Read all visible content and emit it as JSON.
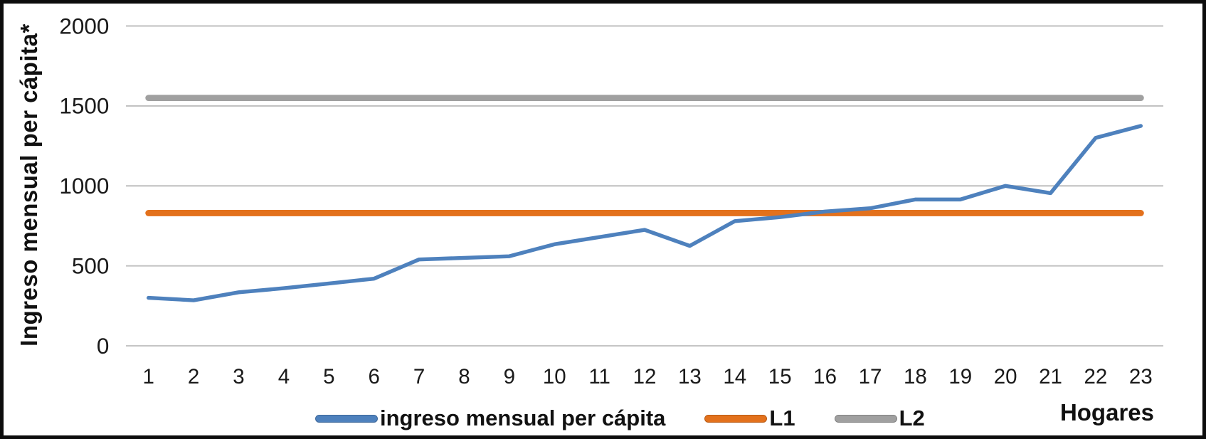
{
  "chart_data": {
    "type": "line",
    "title": "",
    "xlabel": "Hogares",
    "ylabel": "Ingreso mensual per cápita*",
    "categories": [
      "1",
      "2",
      "3",
      "4",
      "5",
      "6",
      "7",
      "8",
      "9",
      "10",
      "11",
      "12",
      "13",
      "14",
      "15",
      "16",
      "17",
      "18",
      "19",
      "20",
      "21",
      "22",
      "23"
    ],
    "series": [
      {
        "name": "ingreso mensual per cápita",
        "type": "line",
        "color": "#4E81BD",
        "stroke_width": 5.5,
        "values": [
          300,
          285,
          335,
          360,
          390,
          420,
          540,
          550,
          560,
          635,
          680,
          725,
          625,
          780,
          805,
          840,
          860,
          915,
          915,
          1000,
          955,
          1300,
          1375
        ]
      },
      {
        "name": "L1",
        "type": "constant-line",
        "color": "#E3711C",
        "stroke_width": 9,
        "constant_value": 830
      },
      {
        "name": "L2",
        "type": "constant-line",
        "color": "#A0A0A0",
        "stroke_width": 9,
        "constant_value": 1550
      }
    ],
    "y_ticks": [
      0,
      500,
      1000,
      1500,
      2000
    ],
    "ylim": [
      0,
      2000
    ],
    "grid": true,
    "gridline_color": "#BFBFBF",
    "axis_text_color": "#1a1a1a",
    "legend_position": "bottom"
  }
}
